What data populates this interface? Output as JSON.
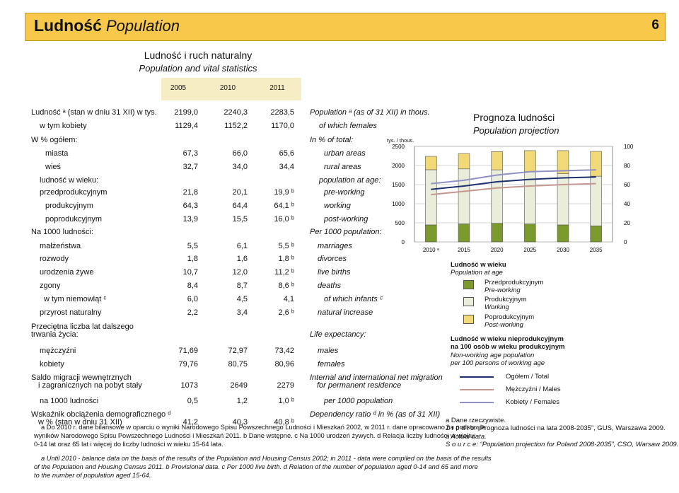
{
  "header": {
    "title_pl": "Ludność",
    "title_en": "Population",
    "page_number": "6"
  },
  "table": {
    "title_pl": "Ludność i ruch naturalny",
    "title_en": "Population and vital statistics",
    "years": [
      "2005",
      "2010",
      "2011"
    ],
    "rows": [
      {
        "pl": "Ludność ᵃ (stan w dniu 31 XII) w tys.",
        "v": [
          "2199,0",
          "2240,3",
          "2283,5"
        ],
        "en": "Population ᵃ (as of 31 XII) in thous."
      },
      {
        "pl": "w tym kobiety",
        "v": [
          "1129,4",
          "1152,2",
          "1170,0"
        ],
        "en": "of which females"
      },
      {
        "pl": "W % ogółem:",
        "v": [
          "",
          "",
          ""
        ],
        "en": "In % of total:"
      },
      {
        "pl": "miasta",
        "v": [
          "67,3",
          "66,0",
          "65,6"
        ],
        "en": "urban areas"
      },
      {
        "pl": "wieś",
        "v": [
          "32,7",
          "34,0",
          "34,4"
        ],
        "en": "rural areas"
      },
      {
        "pl": "ludność w wieku:",
        "v": [
          "",
          "",
          ""
        ],
        "en": "population at age:"
      },
      {
        "pl": "przedprodukcyjnym",
        "v": [
          "21,8",
          "20,1",
          "19,9 ᵇ"
        ],
        "en": "pre-working"
      },
      {
        "pl": "produkcyjnym",
        "v": [
          "64,3",
          "64,4",
          "64,1 ᵇ"
        ],
        "en": "working"
      },
      {
        "pl": "poprodukcyjnym",
        "v": [
          "13,9",
          "15,5",
          "16,0 ᵇ"
        ],
        "en": "post-working"
      },
      {
        "pl": "Na 1000 ludności:",
        "v": [
          "",
          "",
          ""
        ],
        "en": "Per 1000 population:"
      },
      {
        "pl": "małżeństwa",
        "v": [
          "5,5",
          "6,1",
          "5,5 ᵇ"
        ],
        "en": "marriages"
      },
      {
        "pl": "rozwody",
        "v": [
          "1,8",
          "1,6",
          "1,8 ᵇ"
        ],
        "en": "divorces"
      },
      {
        "pl": "urodzenia żywe",
        "v": [
          "10,7",
          "12,0",
          "11,2 ᵇ"
        ],
        "en": "live births"
      },
      {
        "pl": "zgony",
        "v": [
          "8,4",
          "8,7",
          "8,6 ᵇ"
        ],
        "en": "deaths"
      },
      {
        "pl": "w tym niemowląt ᶜ",
        "v": [
          "6,0",
          "4,5",
          "4,1"
        ],
        "en": "of which infants ᶜ"
      },
      {
        "pl": "przyrost naturalny",
        "v": [
          "2,2",
          "3,4",
          "2,6 ᵇ"
        ],
        "en": "natural increase"
      },
      {
        "pl": "Przeciętna liczba lat dalszego",
        "pl2": "trwania życia:",
        "v": [
          "",
          "",
          ""
        ],
        "en": "Life expectancy:"
      },
      {
        "pl": "mężczyźni",
        "v": [
          "71,69",
          "72,97",
          "73,42"
        ],
        "en": "males"
      },
      {
        "pl": "kobiety",
        "v": [
          "79,76",
          "80,75",
          "80,96"
        ],
        "en": "females"
      },
      {
        "pl": "Saldo migracji wewnętrznych",
        "pl2": "i zagranicznych na pobyt stały",
        "v": [
          "1073",
          "2649",
          "2279"
        ],
        "en": "Internal and international net migration",
        "en2": "for permanent residence"
      },
      {
        "pl": "na 1000 ludności",
        "v": [
          "0,5",
          "1,2",
          "1,0 ᵇ"
        ],
        "en": "per 1000 population"
      },
      {
        "pl": "Wskaźnik obciążenia demograficznego ᵈ",
        "pl2": "w % (stan w dniu 31 XII)",
        "v": [
          "41,2",
          "40,3",
          "40,8 ᵇ"
        ],
        "en": "Dependency ratio ᵈ in % (as of 31 XII)"
      }
    ]
  },
  "footnotes": {
    "pl1": "a Do 2010 r. dane bilansowe w oparciu o wyniki Narodowego Spisu Powszechnego Ludności i Mieszkań 2002, w 2011 r. dane opracowano na podstawie",
    "pl2": "wyników Narodowego Spisu Powszechnego Ludności i Mieszkań 2011.   b Dane wstępne.   c Na 1000 urodzeń żywych.   d Relacja liczby ludności w wieku",
    "pl3": "0-14 lat oraz 65 lat i więcej do liczby ludności w wieku 15-64 lata.",
    "en1": "a Until 2010 - balance data on the basis of the results of the Population and Housing Census 2002; in 2011 - data were compiled on the basis of the results",
    "en2": "of the Population and Housing Census 2011.   b Provisional data.   c Per 1000 live birth.   d Relation of the number of population aged 0-14 and 65 and more",
    "en3": "to the number of population aged 15-64."
  },
  "chart_data": {
    "type": "bar",
    "title": "Prognoza ludności",
    "subtitle": "Population projection",
    "left_axis_unit": "tys. / thous.",
    "categories": [
      "2010 ᵃ",
      "2015",
      "2020",
      "2025",
      "2030",
      "2035"
    ],
    "ylim_left": [
      0,
      2500
    ],
    "left_ticks": [
      "0",
      "500",
      "1000",
      "1500",
      "2000",
      "2500"
    ],
    "ylim_right": [
      0,
      100
    ],
    "right_ticks": [
      "0",
      "20",
      "40",
      "60",
      "80",
      "100"
    ],
    "stack_series": [
      {
        "name": "Przedprodukcyjnym / Pre-working",
        "color": "#7a9a2e",
        "values": [
          445,
          472,
          487,
          470,
          445,
          420
        ]
      },
      {
        "name": "Produkcyjnym / Working",
        "color": "#e9edd9",
        "values": [
          1445,
          1440,
          1400,
          1370,
          1340,
          1300
        ]
      },
      {
        "name": "Poprodukcyjnym / Post-working",
        "color": "#f2d978",
        "values": [
          350,
          403,
          478,
          550,
          605,
          650
        ]
      }
    ],
    "line_series": [
      {
        "name": "Ogółem / Total",
        "color": "#1c2f6e",
        "values": [
          55.0,
          58.5,
          63.0,
          65.5,
          67.0,
          68.0
        ]
      },
      {
        "name": "Mężczyźni / Males",
        "color": "#c4968f",
        "values": [
          49.5,
          53.0,
          56.5,
          58.5,
          60.0,
          61.0
        ]
      },
      {
        "name": "Kobiety / Females",
        "color": "#8f91c4",
        "values": [
          61.0,
          64.5,
          70.0,
          73.5,
          74.5,
          75.5
        ]
      }
    ],
    "legend1": {
      "title_pl": "Ludność w wieku",
      "title_en": "Population at age",
      "items": [
        {
          "pl": "Przedprodukcyjnym",
          "en": "Pre-working"
        },
        {
          "pl": "Produkcyjnym",
          "en": "Working"
        },
        {
          "pl": "Poprodukcyjnym",
          "en": "Post-working"
        }
      ]
    },
    "legend2": {
      "title_pl1": "Ludność w wieku nieprodukcyjnym",
      "title_pl2": "na 100 osób w wieku produkcyjnym",
      "title_en1": "Non-working age population",
      "title_en2": "per 100 persons of working age",
      "items": [
        "Ogółem / Total",
        "Mężczyźni / Males",
        "Kobiety / Females"
      ]
    }
  },
  "chart_notes": {
    "a": "a Dane rzeczywiste.",
    "a_en": "a Actual data.",
    "source_pl": "Ź r ó d ł o: „Prognoza ludności na lata 2008-2035”, GUS, Warszawa 2009.",
    "source_en": "S o u r c e: “Population projection for Poland 2008-2035”, CSO, Warsaw 2009."
  }
}
